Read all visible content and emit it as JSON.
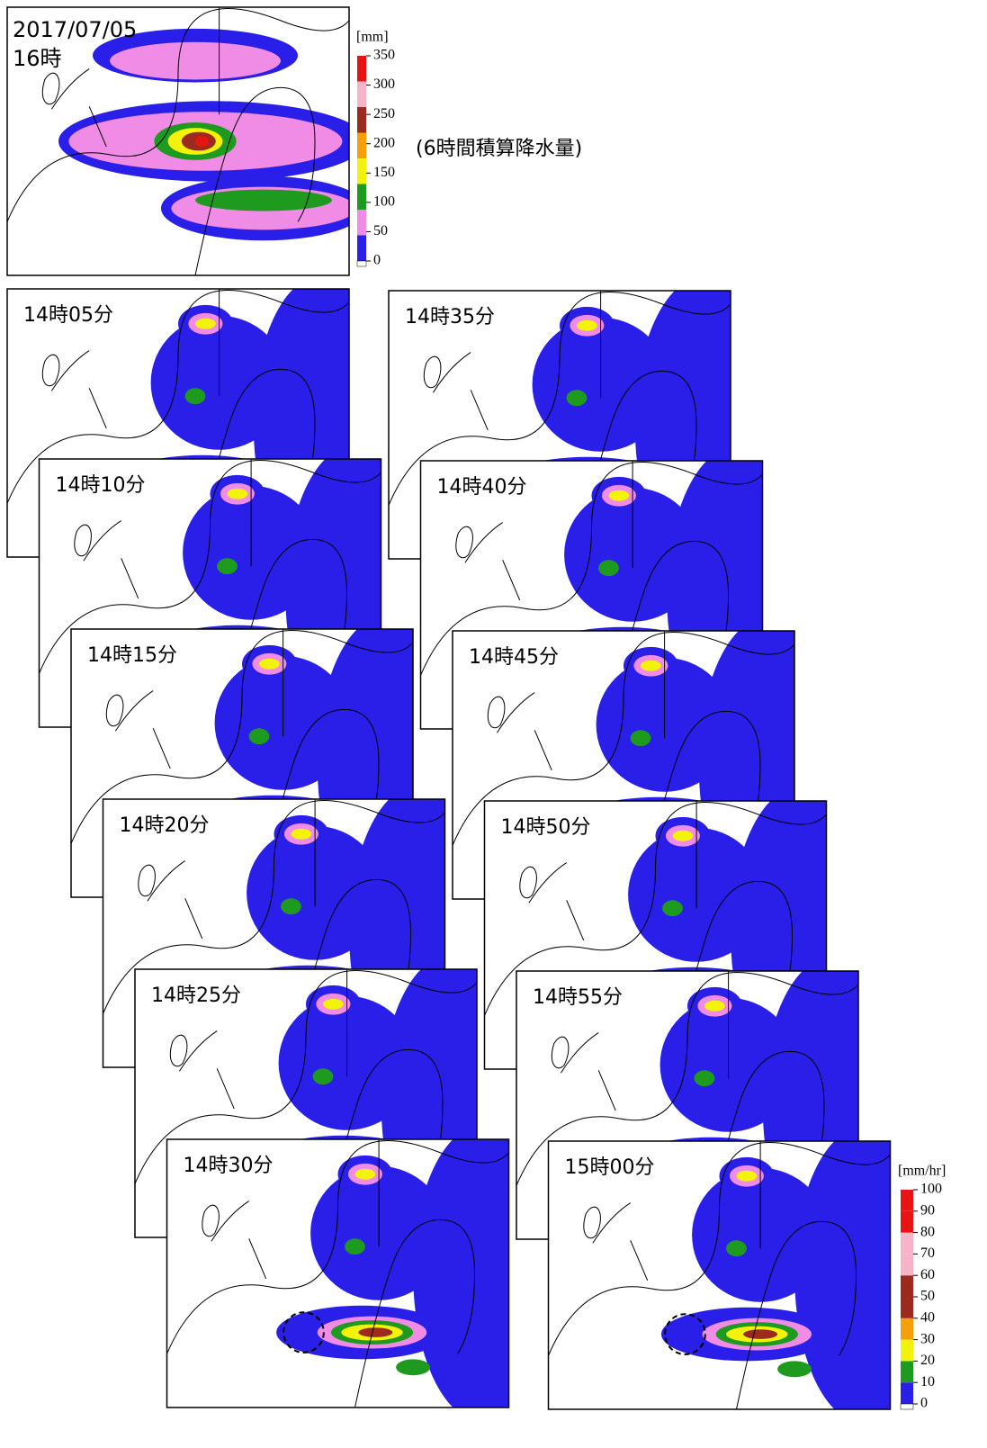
{
  "top_panel": {
    "date": "2017/07/05",
    "time": "16時",
    "unit": "[mm]",
    "colorbar_ticks": [
      0,
      50,
      100,
      150,
      200,
      250,
      300,
      350
    ],
    "colorbar_colors": [
      "#2a1fe8",
      "#f08ce6",
      "#1e9a1e",
      "#f2f20a",
      "#f5a00a",
      "#9c2a1e",
      "#f5b4c8",
      "#e81414"
    ],
    "caption": "(6時間積算降水量)"
  },
  "panels": [
    {
      "label": "14時05分"
    },
    {
      "label": "14時10分"
    },
    {
      "label": "14時15分"
    },
    {
      "label": "14時20分"
    },
    {
      "label": "14時25分"
    },
    {
      "label": "14時30分"
    },
    {
      "label": "14時35分"
    },
    {
      "label": "14時40分"
    },
    {
      "label": "14時45分"
    },
    {
      "label": "14時50分"
    },
    {
      "label": "14時55分"
    },
    {
      "label": "15時00分"
    }
  ],
  "bottom_colorbar": {
    "unit": "[mm/hr]",
    "ticks": [
      0,
      10,
      20,
      30,
      40,
      50,
      60,
      70,
      80,
      90,
      100
    ],
    "colors": [
      "#2a1fe8",
      "#1e9a1e",
      "#f2f20a",
      "#f5a00a",
      "#9c2a1e",
      "#9c2a1e",
      "#f5b4c8",
      "#f5b4c8",
      "#e81414",
      "#e81414"
    ]
  }
}
